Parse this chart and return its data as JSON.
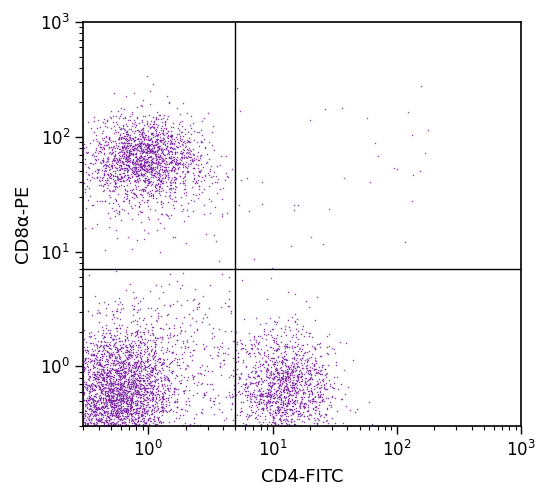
{
  "title": "",
  "xlabel": "CD4-FITC",
  "ylabel": "CD8α-PE",
  "xlim": [
    0.3,
    1000
  ],
  "ylim": [
    0.3,
    1000
  ],
  "dot_color": "#7B1FA2",
  "dot_size": 1.2,
  "dot_alpha": 0.85,
  "quadrant_x": 5.0,
  "quadrant_y": 7.0,
  "background_color": "#ffffff",
  "axis_label_fontsize": 13,
  "tick_fontsize": 12
}
